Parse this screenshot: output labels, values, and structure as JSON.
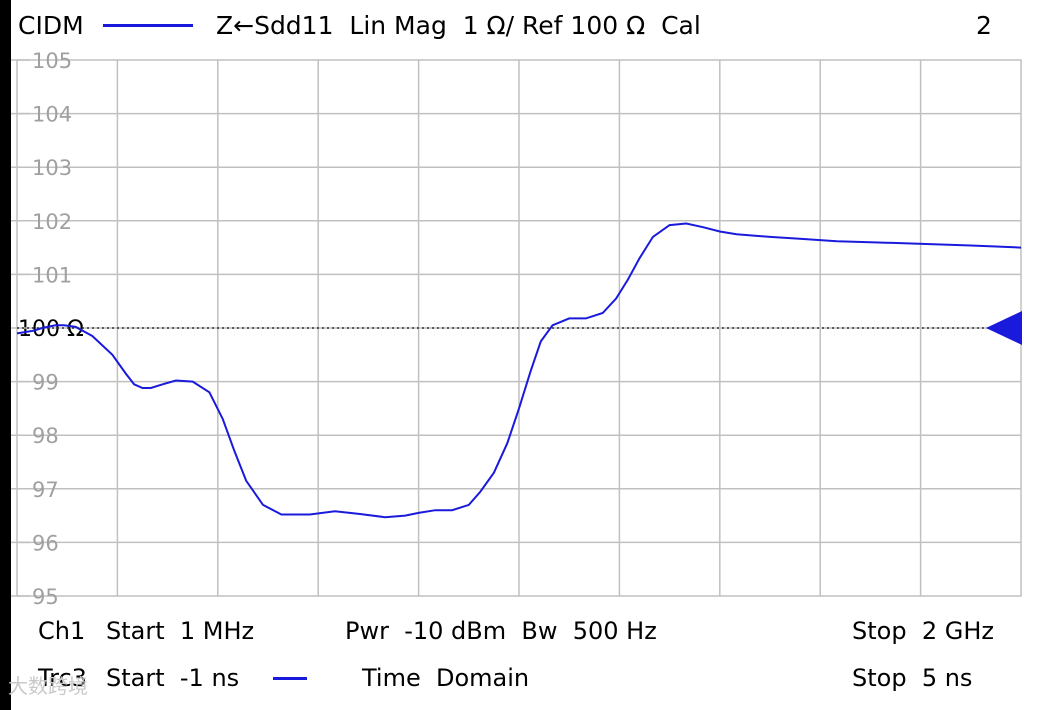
{
  "header": {
    "channel_name": "CIDM",
    "trace_desc": "Z←Sdd11  Lin Mag  1 Ω/ Ref 100 Ω  Cal",
    "channel_number": "2"
  },
  "footer": {
    "ch_label": "Ch1",
    "start_freq": "Start  1 MHz",
    "power_bw": "Pwr  -10 dBm  Bw  500 Hz",
    "stop_freq": "Stop  2 GHz",
    "trc_label": "Trc3",
    "start_time": "Start  -1 ns",
    "time_domain": "Time  Domain",
    "stop_time": "Stop  5 ns"
  },
  "watermark": "大数跨境",
  "colors": {
    "trace": "#1a1adc",
    "reference_marker": "#1a1adc",
    "grid": "#c0c0c0",
    "tick_label": "#a0a0a0"
  },
  "chart_data": {
    "type": "line",
    "title": "",
    "xlabel": "",
    "ylabel": "",
    "xlim": [
      -1,
      5
    ],
    "ylim": [
      95,
      105
    ],
    "yticks": [
      "105",
      "104",
      "103",
      "102",
      "101",
      "100 Ω",
      "99",
      "98",
      "97",
      "96",
      "95"
    ],
    "reference_value": 100,
    "grid": true,
    "series": [
      {
        "x": [
          -1.0,
          -0.9,
          -0.85,
          -0.77,
          -0.72,
          -0.65,
          -0.55,
          -0.43,
          -0.35,
          -0.3,
          -0.25,
          -0.2,
          -0.13,
          -0.05,
          0.05,
          0.15,
          0.23,
          0.3,
          0.37,
          0.47,
          0.58,
          0.75,
          0.9,
          1.05,
          1.2,
          1.32,
          1.4,
          1.5,
          1.6,
          1.7,
          1.77,
          1.85,
          1.93,
          2.0,
          2.07,
          2.13,
          2.2,
          2.3,
          2.4,
          2.5,
          2.58,
          2.65,
          2.72,
          2.8,
          2.9,
          3.0,
          3.1,
          3.2,
          3.3,
          3.5,
          3.7,
          3.9,
          4.1,
          4.3,
          4.5,
          4.7,
          4.85,
          5.0
        ],
        "values": [
          99.9,
          99.95,
          100.0,
          100.05,
          100.05,
          100.02,
          99.85,
          99.5,
          99.15,
          98.95,
          98.88,
          98.88,
          98.95,
          99.02,
          99.0,
          98.8,
          98.3,
          97.7,
          97.15,
          96.7,
          96.52,
          96.52,
          96.58,
          96.53,
          96.47,
          96.5,
          96.55,
          96.6,
          96.6,
          96.7,
          96.95,
          97.3,
          97.85,
          98.5,
          99.2,
          99.75,
          100.05,
          100.18,
          100.18,
          100.28,
          100.55,
          100.9,
          101.3,
          101.7,
          101.92,
          101.95,
          101.88,
          101.8,
          101.75,
          101.7,
          101.66,
          101.62,
          101.6,
          101.58,
          101.56,
          101.54,
          101.52,
          101.5
        ]
      }
    ]
  }
}
